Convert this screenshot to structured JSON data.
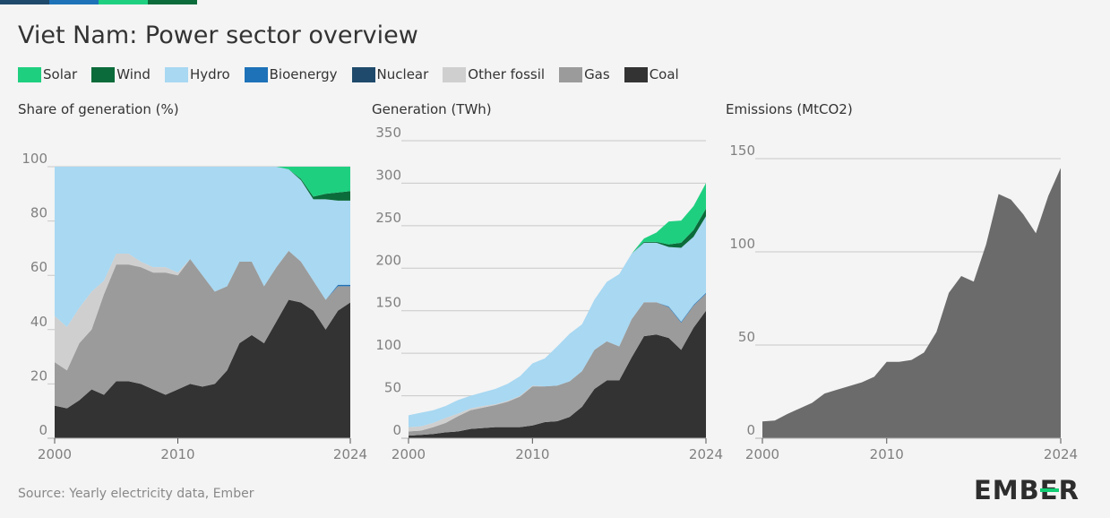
{
  "title": "Viet Nam: Power sector overview",
  "colors": {
    "Solar": "#1fcf80",
    "Wind": "#0b6b3a",
    "Hydro": "#a8d8f2",
    "Bioenergy": "#1e72b8",
    "Nuclear": "#1f4a6b",
    "Other fossil": "#cfcfcf",
    "Gas": "#9b9b9b",
    "Coal": "#333333",
    "emissions": "#6b6b6b",
    "grid": "#c8c8c8",
    "topbar": [
      "#1f4a6b",
      "#1e72b8",
      "#1fcf80",
      "#0b6b3a"
    ]
  },
  "legend": [
    "Solar",
    "Wind",
    "Hydro",
    "Bioenergy",
    "Nuclear",
    "Other fossil",
    "Gas",
    "Coal"
  ],
  "source": "Source: Yearly electricity data, Ember",
  "logo_text": "EMBER",
  "chart_data": [
    {
      "type": "area",
      "stacked": true,
      "title": "Share of generation (%)",
      "x": [
        2000,
        2001,
        2002,
        2003,
        2004,
        2005,
        2006,
        2007,
        2008,
        2009,
        2010,
        2011,
        2012,
        2013,
        2014,
        2015,
        2016,
        2017,
        2018,
        2019,
        2020,
        2021,
        2022,
        2023,
        2024
      ],
      "ylim": [
        0,
        100
      ],
      "yticks": [
        0,
        20,
        40,
        60,
        80,
        100
      ],
      "xticks": [
        2000,
        2010,
        2024
      ],
      "series": [
        {
          "name": "Coal",
          "values": [
            12,
            11,
            14,
            18,
            16,
            21,
            21,
            20,
            18,
            16,
            18,
            20,
            19,
            20,
            25,
            35,
            38,
            35,
            43,
            51,
            50,
            47,
            40,
            47,
            50
          ]
        },
        {
          "name": "Gas",
          "values": [
            16,
            14,
            21,
            22,
            37,
            43,
            43,
            43,
            43,
            45,
            42,
            46,
            41,
            34,
            31,
            30,
            27,
            21,
            20,
            18,
            15,
            11,
            11,
            9,
            6
          ]
        },
        {
          "name": "Other fossil",
          "values": [
            17,
            16,
            13,
            14,
            5,
            4,
            4,
            2,
            2,
            2,
            1,
            0,
            0,
            0,
            0,
            0,
            0,
            0,
            0,
            0,
            0,
            0,
            0,
            0,
            0
          ]
        },
        {
          "name": "Nuclear",
          "values": [
            0,
            0,
            0,
            0,
            0,
            0,
            0,
            0,
            0,
            0,
            0,
            0,
            0,
            0,
            0,
            0,
            0,
            0,
            0,
            0,
            0,
            0,
            0,
            0,
            0
          ]
        },
        {
          "name": "Bioenergy",
          "values": [
            0,
            0,
            0,
            0,
            0,
            0,
            0,
            0,
            0,
            0,
            0,
            0,
            0,
            0,
            0,
            0,
            0,
            0,
            0,
            0,
            0,
            0,
            0,
            0.5,
            0.5
          ]
        },
        {
          "name": "Hydro",
          "values": [
            55,
            59,
            52,
            46,
            42,
            32,
            32,
            35,
            37,
            37,
            39,
            34,
            40,
            46,
            44,
            35,
            35,
            44,
            37,
            30,
            30,
            30,
            37,
            31,
            31
          ]
        },
        {
          "name": "Wind",
          "values": [
            0,
            0,
            0,
            0,
            0,
            0,
            0,
            0,
            0,
            0,
            0,
            0,
            0,
            0,
            0,
            0,
            0,
            0,
            0,
            0,
            0.5,
            1,
            2,
            3,
            3.5
          ]
        },
        {
          "name": "Solar",
          "values": [
            0,
            0,
            0,
            0,
            0,
            0,
            0,
            0,
            0,
            0,
            0,
            0,
            0,
            0,
            0,
            0,
            0,
            0,
            0,
            1,
            4.5,
            11,
            10,
            9.5,
            9
          ]
        }
      ]
    },
    {
      "type": "area",
      "stacked": true,
      "title": "Generation (TWh)",
      "x": [
        2000,
        2001,
        2002,
        2003,
        2004,
        2005,
        2006,
        2007,
        2008,
        2009,
        2010,
        2011,
        2012,
        2013,
        2014,
        2015,
        2016,
        2017,
        2018,
        2019,
        2020,
        2021,
        2022,
        2023,
        2024
      ],
      "ylim": [
        0,
        350
      ],
      "yticks": [
        0,
        50,
        100,
        150,
        200,
        250,
        300,
        350
      ],
      "xticks": [
        2000,
        2010,
        2024
      ],
      "series": [
        {
          "name": "Coal",
          "values": [
            3,
            4,
            5,
            7,
            8,
            11,
            12,
            13,
            13,
            13,
            15,
            19,
            20,
            25,
            37,
            58,
            68,
            68,
            95,
            120,
            122,
            118,
            104,
            130,
            150
          ]
        },
        {
          "name": "Gas",
          "values": [
            5,
            5,
            8,
            11,
            18,
            22,
            24,
            26,
            30,
            36,
            46,
            42,
            42,
            42,
            42,
            46,
            46,
            40,
            45,
            40,
            38,
            36,
            32,
            26,
            20
          ]
        },
        {
          "name": "Other fossil",
          "values": [
            5,
            5,
            5,
            6,
            3,
            2,
            2,
            1,
            1,
            1,
            1,
            0,
            0,
            0,
            0,
            0,
            0,
            0,
            0,
            0,
            0,
            0,
            0,
            0,
            0
          ]
        },
        {
          "name": "Nuclear",
          "values": [
            0,
            0,
            0,
            0,
            0,
            0,
            0,
            0,
            0,
            0,
            0,
            0,
            0,
            0,
            0,
            0,
            0,
            0,
            0,
            0,
            0,
            0,
            0,
            0,
            0
          ]
        },
        {
          "name": "Bioenergy",
          "values": [
            0,
            0,
            0,
            0,
            0,
            0,
            0,
            0,
            0,
            0,
            0,
            0,
            0,
            0,
            0,
            0,
            0,
            0,
            0,
            0,
            0,
            1,
            1,
            1,
            1
          ]
        },
        {
          "name": "Hydro",
          "values": [
            14,
            16,
            15,
            14,
            16,
            15,
            16,
            18,
            20,
            23,
            26,
            33,
            46,
            56,
            55,
            59,
            70,
            85,
            77,
            70,
            70,
            70,
            87,
            80,
            90
          ]
        },
        {
          "name": "Wind",
          "values": [
            0,
            0,
            0,
            0,
            0,
            0,
            0,
            0,
            0,
            0,
            0,
            0,
            0,
            0,
            0,
            0,
            0,
            0,
            0,
            1,
            1,
            3,
            6,
            8,
            9
          ]
        },
        {
          "name": "Solar",
          "values": [
            0,
            0,
            0,
            0,
            0,
            0,
            0,
            0,
            0,
            0,
            0,
            0,
            0,
            0,
            0,
            0,
            0,
            0,
            0,
            4,
            11,
            27,
            26,
            28,
            30
          ]
        }
      ]
    },
    {
      "type": "area",
      "title": "Emissions (MtCO2)",
      "x": [
        2000,
        2001,
        2002,
        2003,
        2004,
        2005,
        2006,
        2007,
        2008,
        2009,
        2010,
        2011,
        2012,
        2013,
        2014,
        2015,
        2016,
        2017,
        2018,
        2019,
        2020,
        2021,
        2022,
        2023,
        2024
      ],
      "ylim": [
        0,
        150
      ],
      "yticks": [
        0,
        50,
        100,
        150
      ],
      "xticks": [
        2000,
        2010,
        2024
      ],
      "series": [
        {
          "name": "Emissions",
          "values": [
            9,
            9.5,
            13,
            16,
            19,
            24,
            26,
            28,
            30,
            33,
            41,
            41,
            42,
            46,
            57,
            78,
            87,
            84,
            104,
            131,
            128,
            120,
            110,
            130,
            145
          ]
        }
      ]
    }
  ]
}
